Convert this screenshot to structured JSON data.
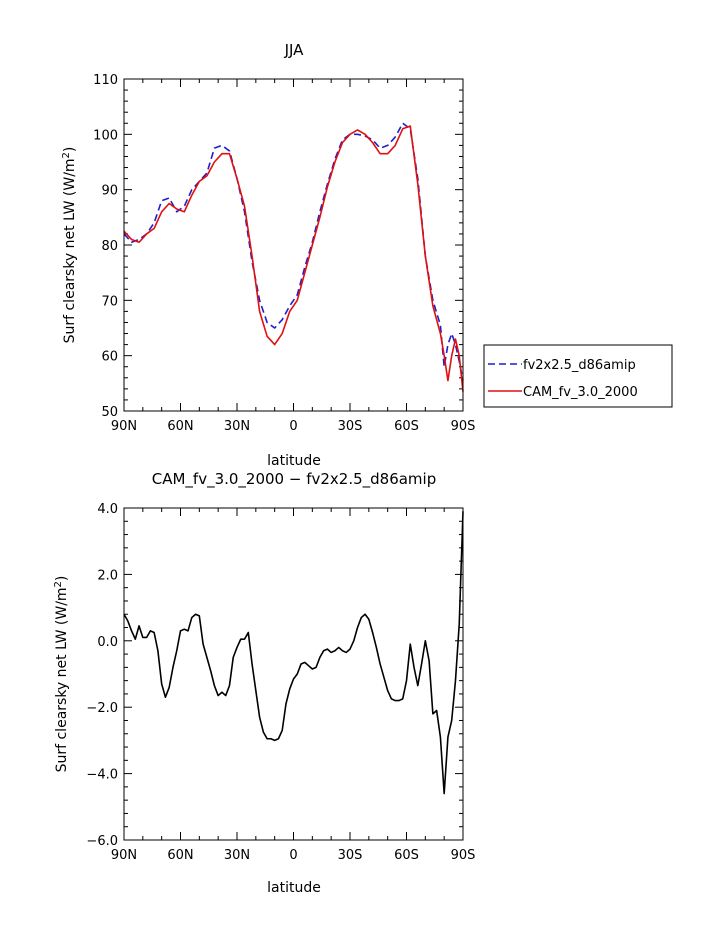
{
  "chart_data": [
    {
      "type": "line",
      "title": "JJA",
      "xlabel": "latitude",
      "ylabel": "Surf clearsky net LW (W/m²)",
      "ylabel_main": "Surf clearsky net LW (W/m",
      "ylabel_sup": "2",
      "ylabel_close": ")",
      "xlim": [
        90,
        -90
      ],
      "ylim": [
        50,
        110
      ],
      "x_ticks": [
        90,
        60,
        30,
        0,
        -30,
        -60,
        -90
      ],
      "x_tick_labels": [
        "90N",
        "60N",
        "30N",
        "0",
        "30S",
        "60S",
        "90S"
      ],
      "y_ticks": [
        50,
        60,
        70,
        80,
        90,
        100,
        110
      ],
      "y_tick_labels": [
        "50",
        "60",
        "70",
        "80",
        "90",
        "100",
        "110"
      ],
      "legend_position": "right",
      "series": [
        {
          "name": "fv2x2.5_d86amip",
          "color": "#1f1fcc",
          "dash": "dashed",
          "x": [
            90,
            86,
            82,
            78,
            74,
            70,
            66,
            62,
            58,
            54,
            50,
            46,
            42,
            38,
            34,
            30,
            26,
            22,
            18,
            14,
            10,
            6,
            2,
            -2,
            -6,
            -10,
            -14,
            -18,
            -22,
            -26,
            -30,
            -34,
            -38,
            -42,
            -46,
            -50,
            -54,
            -58,
            -62,
            -66,
            -70,
            -74,
            -78,
            -80,
            -82,
            -84,
            -86,
            -88,
            -90
          ],
          "y": [
            82,
            80.5,
            81,
            82,
            84,
            88,
            88.5,
            86,
            87,
            90,
            91.5,
            93,
            97.5,
            98,
            97,
            92,
            86,
            77,
            70,
            66,
            65,
            66.5,
            69,
            71,
            76,
            80.5,
            86,
            91,
            95.5,
            99,
            100,
            100,
            99.7,
            99,
            97.5,
            98,
            99.5,
            102,
            101,
            92,
            78,
            70,
            65.5,
            58,
            62,
            64,
            62,
            59,
            55.5
          ]
        },
        {
          "name": "CAM_fv_3.0_2000",
          "color": "#e01010",
          "dash": "solid",
          "x": [
            90,
            86,
            82,
            78,
            74,
            70,
            66,
            62,
            58,
            54,
            50,
            46,
            42,
            38,
            34,
            30,
            26,
            22,
            18,
            14,
            10,
            6,
            2,
            -2,
            -6,
            -10,
            -14,
            -18,
            -22,
            -26,
            -30,
            -34,
            -38,
            -42,
            -46,
            -50,
            -54,
            -58,
            -62,
            -66,
            -70,
            -74,
            -78,
            -80,
            -82,
            -84,
            -86,
            -88,
            -90
          ],
          "y": [
            82.5,
            81,
            80.5,
            82,
            83,
            86,
            87.5,
            86.5,
            86,
            89,
            91.5,
            92.5,
            95,
            96.5,
            96.5,
            92,
            87,
            78,
            68,
            63.5,
            62,
            64,
            68,
            70,
            75,
            80,
            85,
            90.5,
            95,
            98.5,
            100,
            100.8,
            100,
            98.5,
            96.5,
            96.5,
            98,
            101,
            101.5,
            91,
            78,
            69,
            64,
            60,
            55.5,
            60,
            63,
            60,
            53.5
          ]
        }
      ]
    },
    {
      "type": "line",
      "title": "CAM_fv_3.0_2000 − fv2x2.5_d86amip",
      "xlabel": "latitude",
      "ylabel": "Surf clearsky net LW (W/m²)",
      "ylabel_main": "Surf clearsky net LW (W/m",
      "ylabel_sup": "2",
      "ylabel_close": ")",
      "xlim": [
        90,
        -90
      ],
      "ylim": [
        -6,
        4
      ],
      "x_ticks": [
        90,
        60,
        30,
        0,
        -30,
        -60,
        -90
      ],
      "x_tick_labels": [
        "90N",
        "60N",
        "30N",
        "0",
        "30S",
        "60S",
        "90S"
      ],
      "y_ticks": [
        -6,
        -4,
        -2,
        0,
        2,
        4
      ],
      "y_tick_labels": [
        "−6.0",
        "−4.0",
        "−2.0",
        "0.0",
        "2.0",
        "4.0"
      ],
      "series": [
        {
          "color": "#000000",
          "dash": "solid",
          "x": [
            90,
            88,
            86,
            84,
            82,
            80,
            78,
            76,
            74,
            72,
            70,
            68,
            66,
            64,
            62,
            60,
            58,
            56,
            54,
            52,
            50,
            48,
            46,
            44,
            42,
            40,
            38,
            36,
            34,
            32,
            30,
            28,
            26,
            24,
            22,
            20,
            18,
            16,
            14,
            12,
            10,
            8,
            6,
            4,
            2,
            0,
            -2,
            -4,
            -6,
            -8,
            -10,
            -12,
            -14,
            -16,
            -18,
            -20,
            -22,
            -24,
            -26,
            -28,
            -30,
            -32,
            -34,
            -36,
            -38,
            -40,
            -42,
            -44,
            -46,
            -48,
            -50,
            -52,
            -54,
            -56,
            -58,
            -60,
            -62,
            -64,
            -66,
            -68,
            -70,
            -72,
            -74,
            -76,
            -78,
            -80,
            -82,
            -84,
            -86,
            -88,
            -90
          ],
          "y": [
            0.8,
            0.6,
            0.3,
            0.05,
            0.45,
            0.1,
            0.1,
            0.3,
            0.25,
            -0.3,
            -1.3,
            -1.7,
            -1.4,
            -0.8,
            -0.3,
            0.3,
            0.35,
            0.3,
            0.7,
            0.8,
            0.75,
            -0.1,
            -0.5,
            -0.9,
            -1.35,
            -1.65,
            -1.55,
            -1.65,
            -1.35,
            -0.5,
            -0.2,
            0.05,
            0.05,
            0.25,
            -0.7,
            -1.5,
            -2.3,
            -2.75,
            -2.95,
            -2.95,
            -3.0,
            -2.95,
            -2.7,
            -1.9,
            -1.45,
            -1.15,
            -1.0,
            -0.7,
            -0.65,
            -0.75,
            -0.85,
            -0.8,
            -0.5,
            -0.3,
            -0.25,
            -0.35,
            -0.3,
            -0.2,
            -0.3,
            -0.35,
            -0.25,
            0.0,
            0.4,
            0.7,
            0.8,
            0.65,
            0.25,
            -0.2,
            -0.7,
            -1.1,
            -1.5,
            -1.75,
            -1.8,
            -1.8,
            -1.75,
            -1.2,
            -0.1,
            -0.8,
            -1.35,
            -0.7,
            0.0,
            -0.6,
            -2.2,
            -2.1,
            -2.9,
            -4.6,
            -2.9,
            -2.4,
            -1.2,
            0.5,
            3.9
          ]
        }
      ]
    }
  ]
}
